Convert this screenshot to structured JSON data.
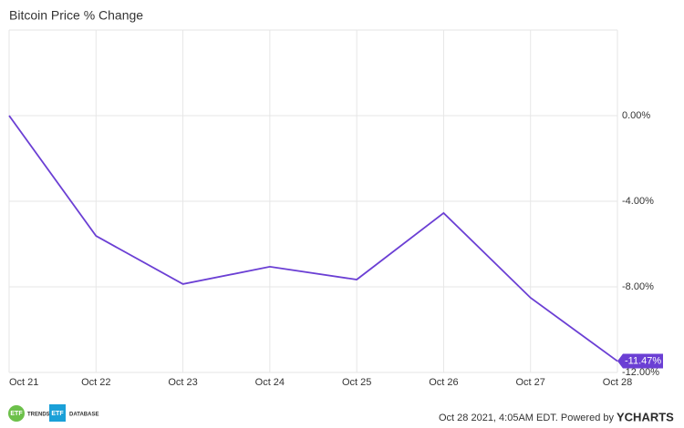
{
  "chart_data": {
    "type": "line",
    "title": "Bitcoin Price % Change",
    "categories": [
      "Oct 21",
      "Oct 22",
      "Oct 23",
      "Oct 24",
      "Oct 25",
      "Oct 26",
      "Oct 27",
      "Oct 28"
    ],
    "series": [
      {
        "color": "#6b3fd4",
        "values": [
          0,
          -5.62,
          -7.87,
          -7.06,
          -7.66,
          -4.55,
          -8.51,
          -11.47
        ],
        "value_labels": [
          null,
          null,
          null,
          null,
          null,
          null,
          null,
          "-11.47%"
        ]
      }
    ],
    "ylim": [
      -12,
      4
    ],
    "yticks": [
      {
        "value": 0,
        "label": "0.00%"
      },
      {
        "value": -4,
        "label": "-4.00%"
      },
      {
        "value": -8,
        "label": "-8.00%"
      },
      {
        "value": -12,
        "label": "-12.00%"
      }
    ],
    "grid": true
  },
  "footer": {
    "timestamp": "Oct 28 2021, 4:05AM EDT. Powered by",
    "brand": "YCHARTS",
    "logo1": {
      "badge": "ETF",
      "text": "TRENDS"
    },
    "logo2": {
      "badge": "ETF",
      "text": "DATABASE"
    }
  }
}
